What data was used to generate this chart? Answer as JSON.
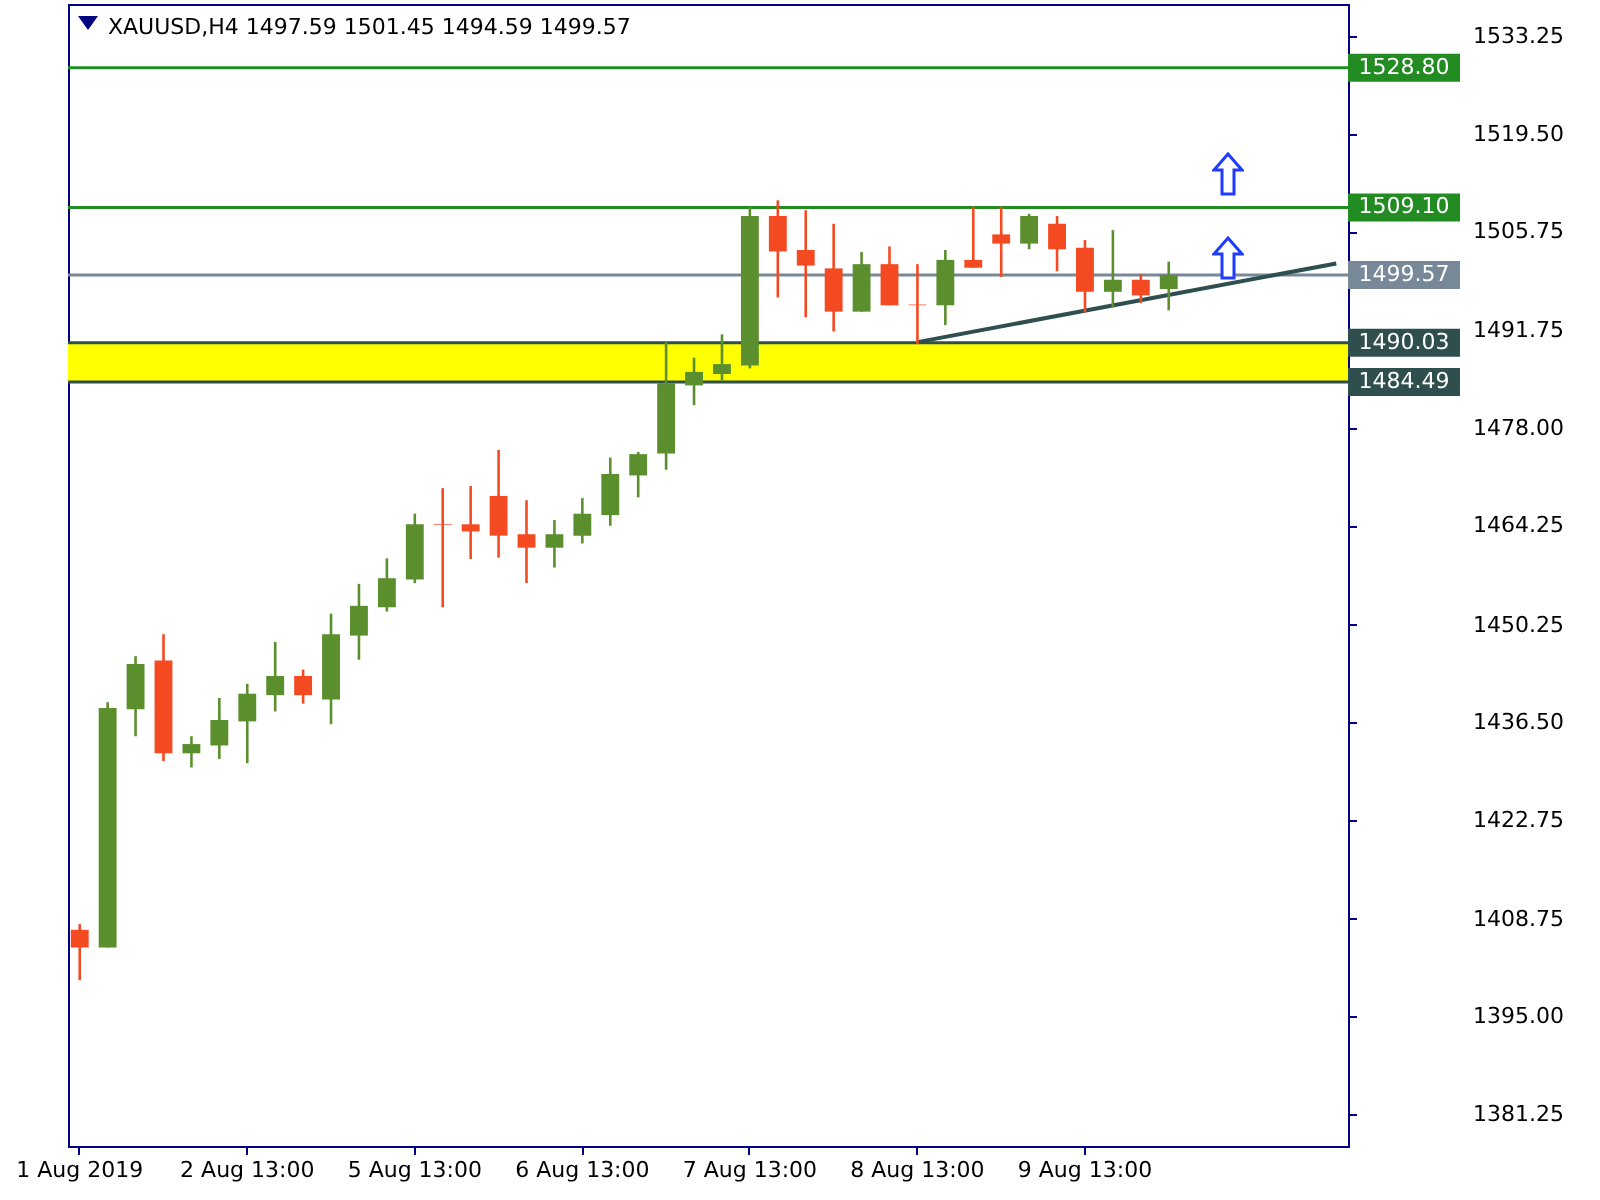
{
  "chart_data": {
    "type": "candlestick",
    "title": "XAUUSD,H4  1497.59 1501.45 1494.59 1499.57",
    "categories": [
      "1 Aug 2019",
      null,
      null,
      null,
      null,
      null,
      "2 Aug 13:00",
      null,
      null,
      null,
      null,
      null,
      "5 Aug 13:00",
      null,
      null,
      null,
      null,
      null,
      "6 Aug 13:00",
      null,
      null,
      null,
      null,
      null,
      "7 Aug 13:00",
      null,
      null,
      null,
      null,
      null,
      "8 Aug 13:00",
      null,
      null,
      null,
      null,
      null,
      "9 Aug 13:00",
      null,
      null,
      null,
      null,
      null,
      null,
      null,
      null,
      null
    ],
    "ohlc": [
      [
        1407.2,
        1408.0,
        1400.1,
        1404.7
      ],
      [
        1404.7,
        1439.3,
        1404.7,
        1438.5
      ],
      [
        1438.3,
        1445.8,
        1434.5,
        1444.7
      ],
      [
        1445.2,
        1448.9,
        1431.0,
        1432.1
      ],
      [
        1432.1,
        1434.5,
        1430.1,
        1433.4
      ],
      [
        1433.2,
        1439.9,
        1431.3,
        1436.8
      ],
      [
        1436.6,
        1441.9,
        1430.7,
        1440.5
      ],
      [
        1440.3,
        1447.8,
        1438.0,
        1443.0
      ],
      [
        1443.0,
        1443.9,
        1439.1,
        1440.3
      ],
      [
        1439.7,
        1451.8,
        1436.2,
        1448.9
      ],
      [
        1448.7,
        1456.0,
        1445.3,
        1452.9
      ],
      [
        1452.7,
        1459.6,
        1452.1,
        1456.8
      ],
      [
        1456.6,
        1465.9,
        1456.1,
        1464.4
      ],
      [
        1464.4,
        1469.5,
        1452.7,
        1464.3
      ],
      [
        1464.4,
        1469.8,
        1459.5,
        1463.4
      ],
      [
        1468.4,
        1474.9,
        1459.7,
        1462.8
      ],
      [
        1463.0,
        1467.8,
        1456.1,
        1461.1
      ],
      [
        1461.1,
        1465.0,
        1458.3,
        1463.0
      ],
      [
        1462.8,
        1468.1,
        1461.7,
        1465.9
      ],
      [
        1465.7,
        1473.8,
        1464.2,
        1471.5
      ],
      [
        1471.3,
        1474.6,
        1468.2,
        1474.3
      ],
      [
        1474.4,
        1490.2,
        1472.1,
        1484.3
      ],
      [
        1484.0,
        1487.9,
        1481.2,
        1485.9
      ],
      [
        1485.6,
        1491.2,
        1484.7,
        1487.0
      ],
      [
        1486.8,
        1509.2,
        1486.4,
        1507.9
      ],
      [
        1507.9,
        1510.1,
        1496.4,
        1502.9
      ],
      [
        1503.1,
        1508.7,
        1493.6,
        1500.9
      ],
      [
        1500.5,
        1506.8,
        1491.6,
        1494.4
      ],
      [
        1494.4,
        1502.8,
        1494.4,
        1501.1
      ],
      [
        1501.1,
        1503.6,
        1495.3,
        1495.3
      ],
      [
        1495.4,
        1501.1,
        1489.8,
        1495.3
      ],
      [
        1495.3,
        1503.1,
        1492.5,
        1501.7
      ],
      [
        1501.7,
        1509.2,
        1500.6,
        1500.6
      ],
      [
        1505.3,
        1509.2,
        1499.3,
        1504.0
      ],
      [
        1504.0,
        1508.2,
        1503.2,
        1507.9
      ],
      [
        1506.8,
        1507.9,
        1500.1,
        1503.2
      ],
      [
        1503.4,
        1504.5,
        1494.3,
        1497.2
      ],
      [
        1497.2,
        1505.9,
        1495.0,
        1498.9
      ],
      [
        1498.9,
        1499.7,
        1495.6,
        1496.7
      ],
      [
        1497.59,
        1501.45,
        1494.59,
        1499.57
      ],
      null,
      null,
      null,
      null,
      null,
      null
    ],
    "colors": [
      "#f44a22",
      "#5b8f2e",
      "#5b8f2e",
      "#f44a22",
      "#5b8f2e",
      "#5b8f2e",
      "#5b8f2e",
      "#5b8f2e",
      "#f44a22",
      "#5b8f2e",
      "#5b8f2e",
      "#5b8f2e",
      "#5b8f2e",
      "#f44a22",
      "#f44a22",
      "#f44a22",
      "#f44a22",
      "#5b8f2e",
      "#5b8f2e",
      "#5b8f2e",
      "#5b8f2e",
      "#5b8f2e",
      "#5b8f2e",
      "#5b8f2e",
      "#5b8f2e",
      "#f44a22",
      "#f44a22",
      "#f44a22",
      "#5b8f2e",
      "#f44a22",
      "#f44a22",
      "#5b8f2e",
      "#f44a22",
      "#f44a22",
      "#5b8f2e",
      "#f44a22",
      "#f44a22",
      "#5b8f2e",
      "#f44a22",
      "#5b8f2e",
      null,
      null,
      null,
      null,
      null,
      null
    ],
    "series": [
      {
        "type": "line",
        "color": "#2f4f4f",
        "values": [
          null,
          null,
          null,
          null,
          null,
          null,
          null,
          null,
          null,
          null,
          null,
          null,
          null,
          null,
          null,
          null,
          null,
          null,
          null,
          null,
          null,
          null,
          null,
          null,
          null,
          null,
          null,
          null,
          null,
          null,
          1490.1,
          null,
          null,
          null,
          null,
          null,
          null,
          null,
          null,
          null,
          null,
          null,
          null,
          null,
          null,
          1501.2
        ]
      }
    ],
    "ylim": [
      1376.7,
      1537.8
    ],
    "yticks": [
      {
        "value": 1381.25,
        "label": "1381.25"
      },
      {
        "value": 1395,
        "label": "1395.00"
      },
      {
        "value": 1408.75,
        "label": "1408.75"
      },
      {
        "value": 1422.75,
        "label": "1422.75"
      },
      {
        "value": 1436.5,
        "label": "1436.50"
      },
      {
        "value": 1450.25,
        "label": "1450.25"
      },
      {
        "value": 1464.25,
        "label": "1464.25"
      },
      {
        "value": 1478,
        "label": "1478.00"
      },
      {
        "value": 1491.75,
        "label": "1491.75"
      },
      {
        "value": 1505.75,
        "label": "1505.75"
      },
      {
        "value": 1519.5,
        "label": "1519.50"
      },
      {
        "value": 1533.25,
        "label": "1533.25"
      }
    ],
    "ref_lines": [
      {
        "axis": "y",
        "value": 1528.8,
        "label": "1528.80",
        "color": "#228b22"
      },
      {
        "axis": "y",
        "value": 1509.1,
        "label": "1509.10",
        "color": "#228b22"
      },
      {
        "axis": "y",
        "value": 1499.57,
        "label": "1499.57",
        "color": "#778899"
      },
      {
        "axis": "y",
        "value": 1490.03,
        "label": "1490.03",
        "color": "#2f4f4f"
      },
      {
        "axis": "y",
        "value": 1484.49,
        "label": "1484.49",
        "color": "#2f4f4f"
      }
    ],
    "bands": [
      {
        "axis": "y",
        "from": 1484.49,
        "to": 1490.03,
        "color": "#ffff00"
      }
    ]
  }
}
